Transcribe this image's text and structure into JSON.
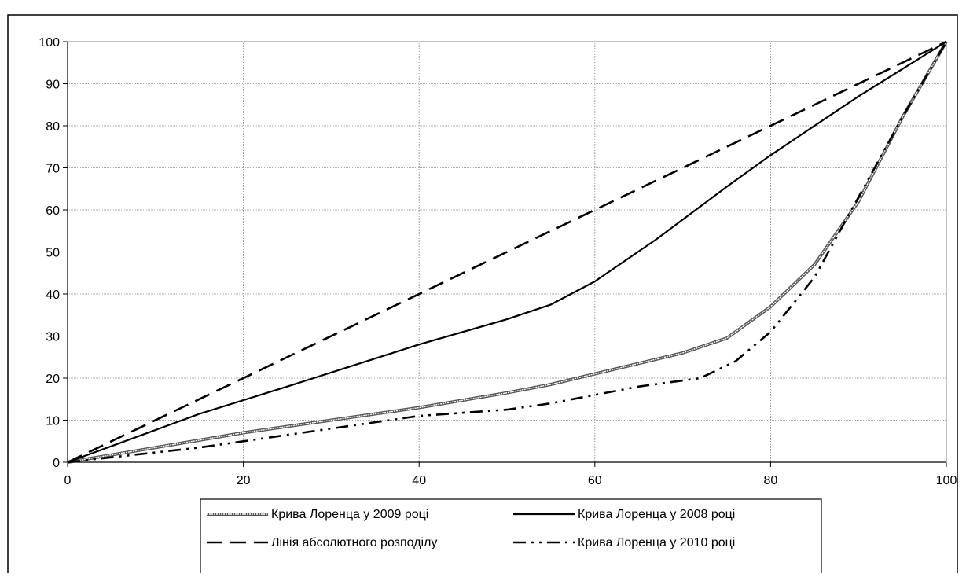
{
  "chart_data": {
    "type": "line",
    "title": "",
    "xlabel": "",
    "ylabel": "",
    "xlim": [
      0,
      100
    ],
    "ylim": [
      0,
      100
    ],
    "x_ticks": [
      0,
      20,
      40,
      60,
      80,
      100
    ],
    "y_ticks": [
      0,
      10,
      20,
      30,
      40,
      50,
      60,
      70,
      80,
      90,
      100
    ],
    "grid": true,
    "legend_position": "bottom",
    "series": [
      {
        "name": "Крива Лоренца у 2009 році",
        "style": "double",
        "color": "#555555",
        "points": [
          [
            0,
            0
          ],
          [
            10,
            3.5
          ],
          [
            20,
            7
          ],
          [
            30,
            10
          ],
          [
            40,
            13
          ],
          [
            50,
            16.5
          ],
          [
            55,
            18.5
          ],
          [
            60,
            21
          ],
          [
            65,
            23.5
          ],
          [
            70,
            26
          ],
          [
            75,
            29.5
          ],
          [
            80,
            37
          ],
          [
            85,
            47
          ],
          [
            90,
            62
          ],
          [
            95,
            82
          ],
          [
            100,
            100
          ]
        ]
      },
      {
        "name": "Крива Лоренца у 2008 році",
        "style": "solid",
        "color": "#000000",
        "points": [
          [
            0,
            0
          ],
          [
            15,
            11.5
          ],
          [
            25,
            18
          ],
          [
            40,
            28
          ],
          [
            50,
            34
          ],
          [
            55,
            37.5
          ],
          [
            60,
            43
          ],
          [
            67,
            53
          ],
          [
            75,
            65.5
          ],
          [
            80,
            73
          ],
          [
            90,
            87
          ],
          [
            100,
            100
          ]
        ]
      },
      {
        "name": "Лінія абсолютного розподілу",
        "style": "dash",
        "color": "#000000",
        "points": [
          [
            0,
            0
          ],
          [
            100,
            100
          ]
        ]
      },
      {
        "name": "Крива Лоренца у 2010 році",
        "style": "dashdot",
        "color": "#000000",
        "points": [
          [
            0,
            0
          ],
          [
            15,
            3.5
          ],
          [
            20,
            5
          ],
          [
            30,
            8
          ],
          [
            40,
            11
          ],
          [
            50,
            12.5
          ],
          [
            55,
            14
          ],
          [
            60,
            16
          ],
          [
            65,
            18
          ],
          [
            72,
            20
          ],
          [
            76,
            24
          ],
          [
            80,
            31
          ],
          [
            85,
            44
          ],
          [
            90,
            63
          ],
          [
            95,
            82
          ],
          [
            100,
            100
          ]
        ]
      }
    ]
  },
  "legend": {
    "rows": [
      [
        0,
        1
      ],
      [
        2,
        3
      ]
    ]
  }
}
